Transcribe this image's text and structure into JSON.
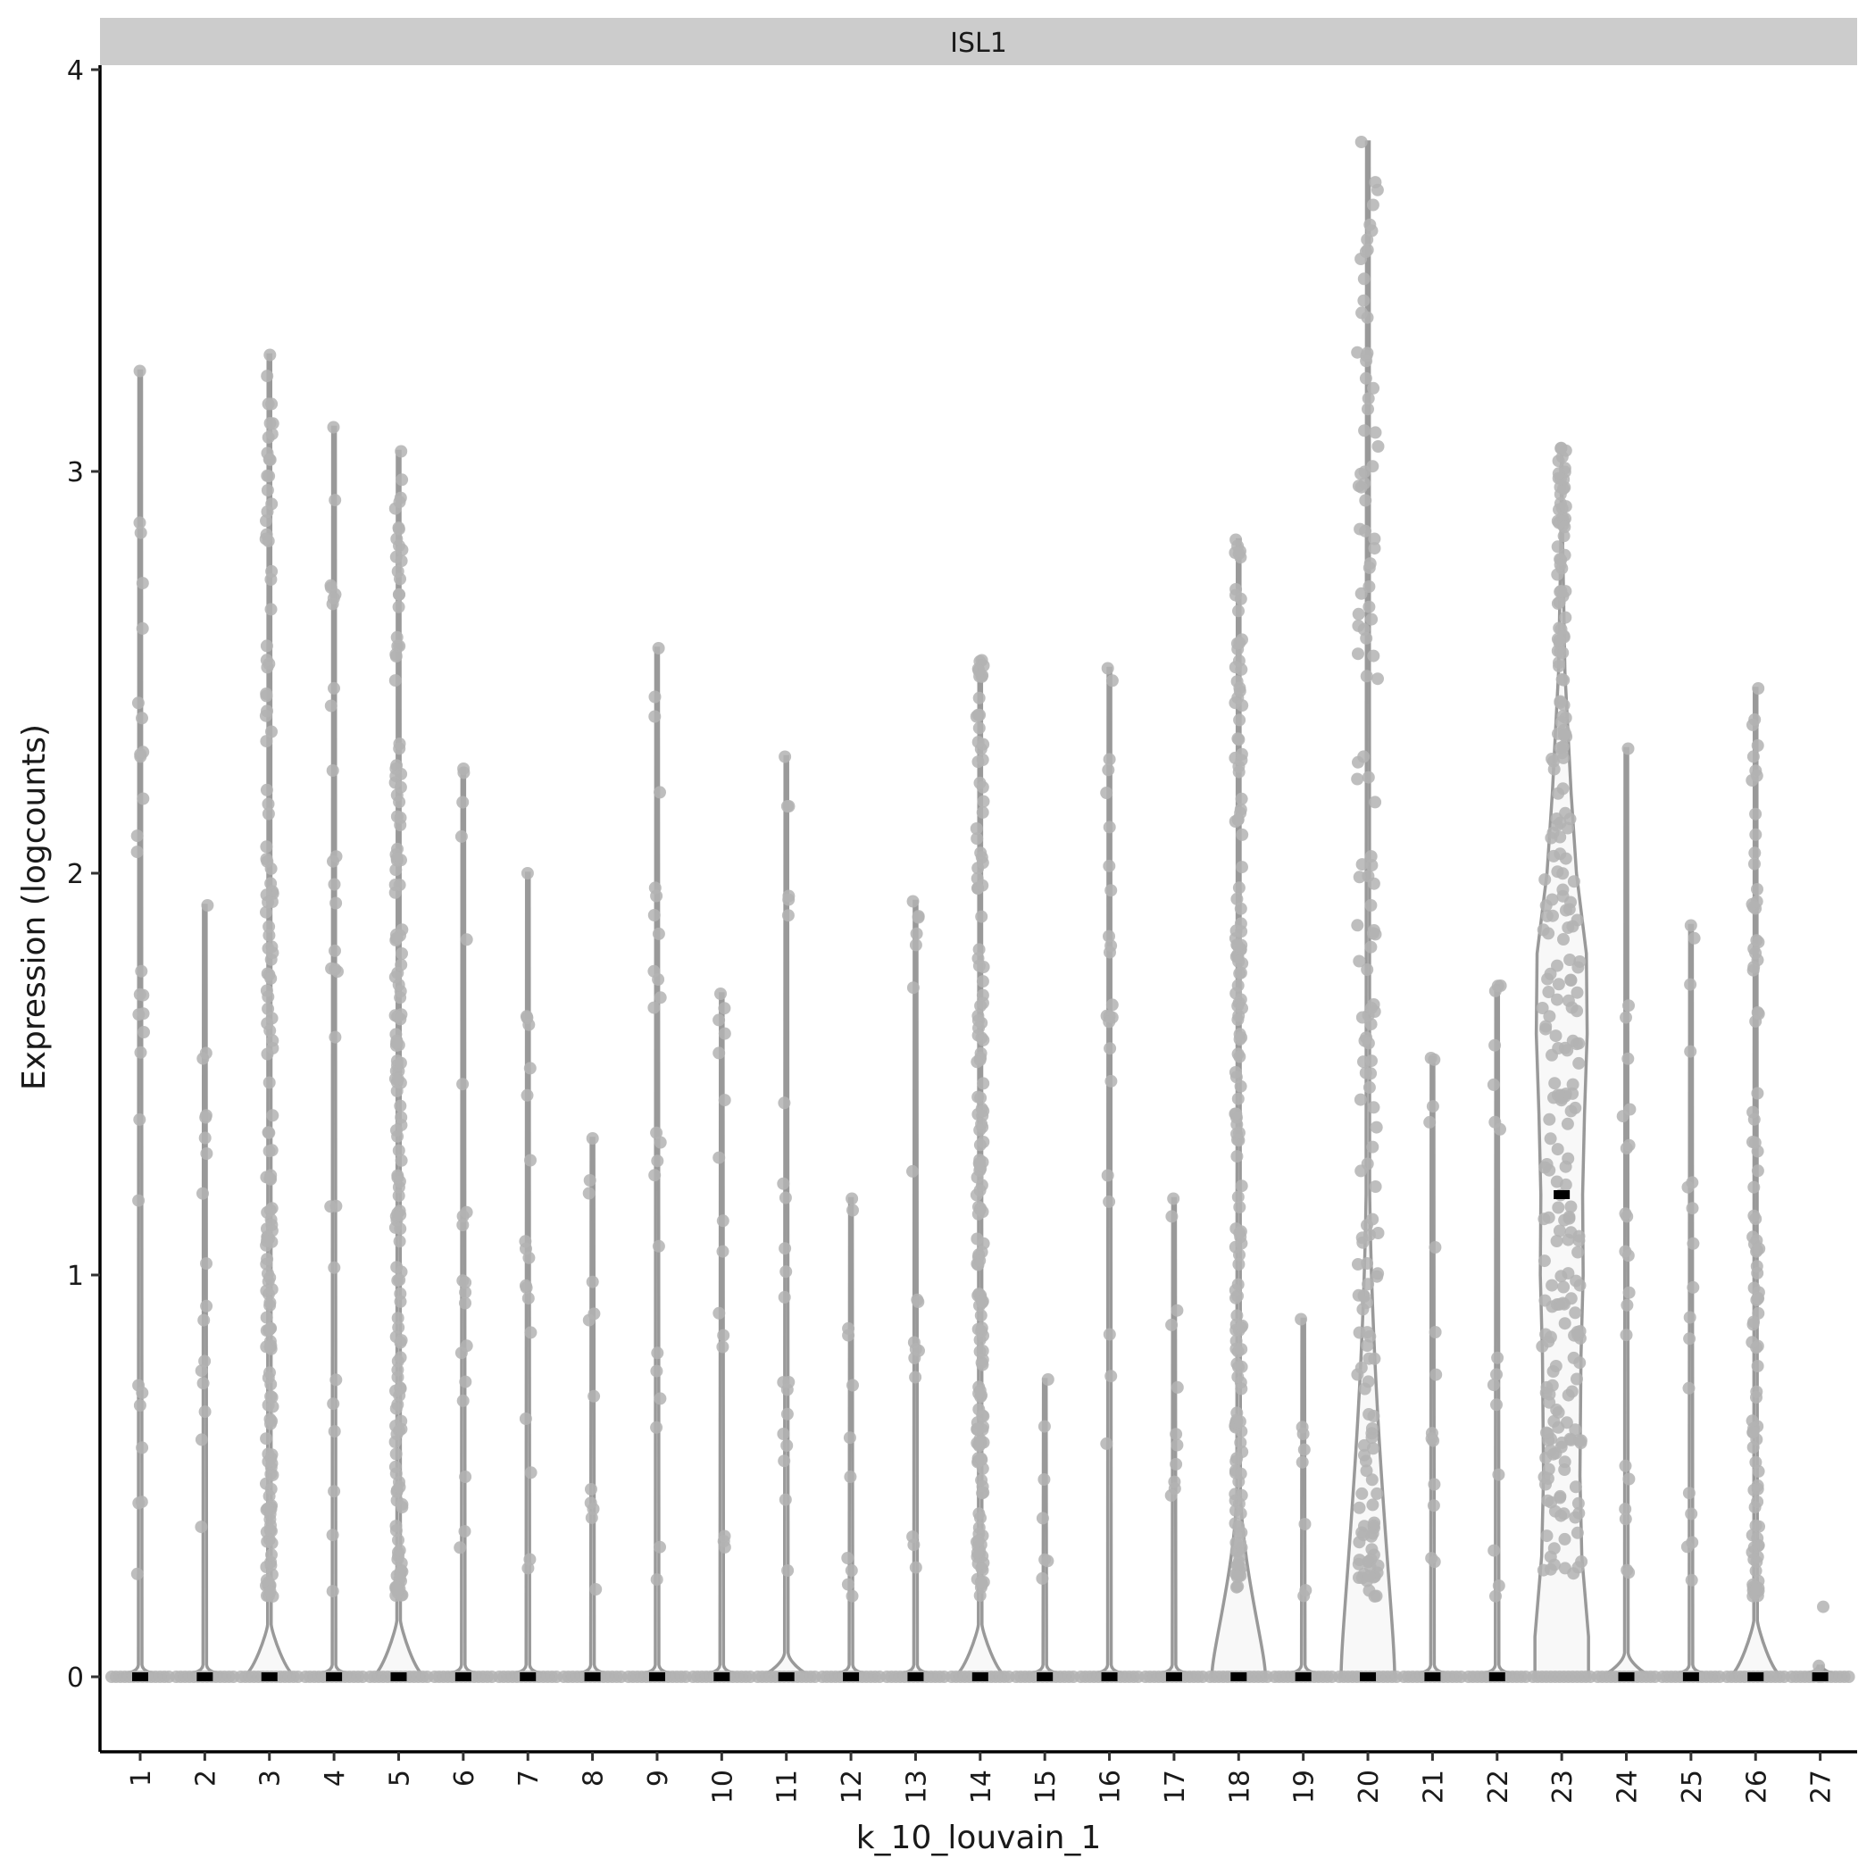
{
  "chart_data": {
    "type": "violin",
    "facet_label": "ISL1",
    "xlabel": "k_10_louvain_1",
    "ylabel": "Expression (logcounts)",
    "ylim": [
      -0.2,
      4.05
    ],
    "yticks": [
      0,
      1,
      2,
      3,
      4
    ],
    "categories": [
      "1",
      "2",
      "3",
      "4",
      "5",
      "6",
      "7",
      "8",
      "9",
      "10",
      "11",
      "12",
      "13",
      "14",
      "15",
      "16",
      "17",
      "18",
      "19",
      "20",
      "21",
      "22",
      "23",
      "24",
      "25",
      "26",
      "27"
    ],
    "max_values": [
      3.25,
      1.92,
      3.29,
      3.11,
      3.05,
      2.26,
      2.0,
      1.34,
      2.56,
      1.7,
      2.29,
      1.19,
      1.93,
      2.53,
      0.74,
      2.51,
      1.19,
      2.83,
      0.89,
      3.82,
      1.54,
      1.72,
      3.06,
      2.31,
      1.87,
      2.46,
      0.0
    ],
    "medians": [
      0,
      0,
      0,
      0,
      0,
      0,
      0,
      0,
      0,
      0,
      0,
      0,
      0,
      0,
      0,
      0,
      0,
      0,
      0,
      0,
      0,
      0,
      1.2,
      0,
      0,
      0,
      0
    ],
    "colors": {
      "violin_stroke": "#999999",
      "point": "#b3b3b3",
      "median": "#000000",
      "strip": "#cccccc",
      "violin_fill": "#f8f8f8"
    }
  }
}
